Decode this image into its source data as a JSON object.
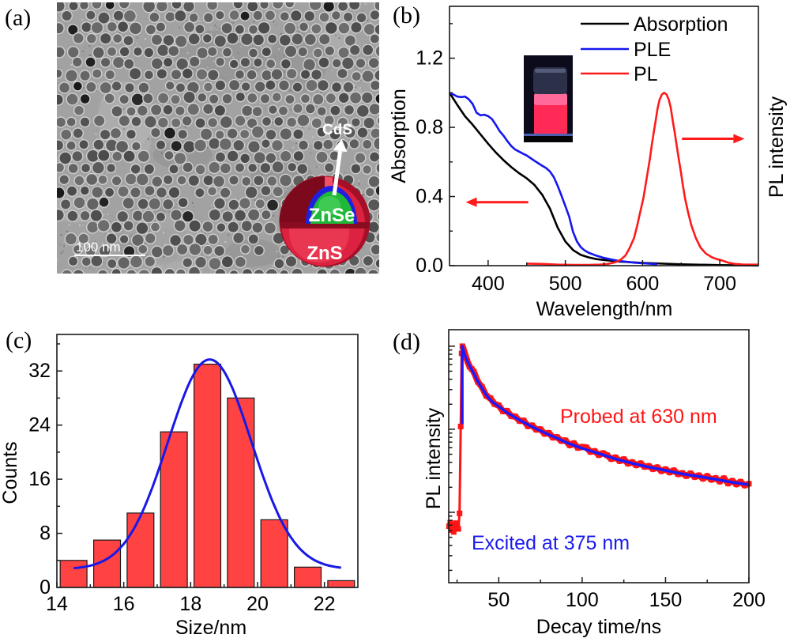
{
  "figure": {
    "panels": {
      "a": {
        "label": "(a)",
        "scale_bar_label": "100 nm",
        "shell_labels": {
          "cds": "CdS",
          "znse": "ZnSe",
          "zns": "ZnS"
        },
        "shell_colors": {
          "zns": "#dc2240",
          "cds": "#2020e0",
          "znse": "#20b838"
        }
      },
      "b": {
        "label": "(b)",
        "inset_image": "vial-photo"
      },
      "c": {
        "label": "(c)"
      },
      "d": {
        "label": "(d)"
      }
    }
  },
  "chart_data": [
    {
      "panel": "b",
      "type": "line",
      "title": "",
      "xlabel": "Wavelength/nm",
      "ylabel": "Absorption",
      "y2label": "PL intensity",
      "xlim": [
        350,
        750
      ],
      "ylim": [
        0,
        1.5
      ],
      "xticks": [
        400,
        500,
        600,
        700
      ],
      "xtick_labels": [
        "400",
        "500",
        "600",
        "700"
      ],
      "xticks_minor": [
        450,
        550,
        650
      ],
      "yticks": [
        0,
        0.4,
        0.8,
        1.2
      ],
      "ytick_labels": [
        "0.0",
        "0.4",
        "0.8",
        "1.2"
      ],
      "yticks_minor": [
        0.2,
        0.6,
        1.0,
        1.4
      ],
      "grid": false,
      "legend": "top-right",
      "series": [
        {
          "name": "Absorption",
          "color": "#000000",
          "axis": "left",
          "points": [
            [
              350,
              1.0
            ],
            [
              360,
              0.93
            ],
            [
              370,
              0.865
            ],
            [
              380,
              0.815
            ],
            [
              390,
              0.76
            ],
            [
              400,
              0.705
            ],
            [
              410,
              0.655
            ],
            [
              420,
              0.61
            ],
            [
              430,
              0.57
            ],
            [
              440,
              0.535
            ],
            [
              450,
              0.505
            ],
            [
              460,
              0.467
            ],
            [
              470,
              0.41
            ],
            [
              480,
              0.33
            ],
            [
              490,
              0.22
            ],
            [
              500,
              0.14
            ],
            [
              510,
              0.09
            ],
            [
              520,
              0.062
            ],
            [
              530,
              0.048
            ],
            [
              540,
              0.038
            ],
            [
              550,
              0.033
            ],
            [
              570,
              0.024
            ],
            [
              600,
              0.016
            ],
            [
              650,
              0.008
            ],
            [
              700,
              0.003
            ],
            [
              750,
              0.001
            ]
          ]
        },
        {
          "name": "PLE",
          "color": "#1616f0",
          "axis": "left",
          "points": [
            [
              350,
              1.0
            ],
            [
              355,
              0.99
            ],
            [
              360,
              0.978
            ],
            [
              365,
              0.975
            ],
            [
              370,
              0.978
            ],
            [
              375,
              0.962
            ],
            [
              380,
              0.935
            ],
            [
              385,
              0.885
            ],
            [
              390,
              0.87
            ],
            [
              395,
              0.873
            ],
            [
              400,
              0.865
            ],
            [
              405,
              0.848
            ],
            [
              410,
              0.815
            ],
            [
              415,
              0.778
            ],
            [
              420,
              0.752
            ],
            [
              425,
              0.72
            ],
            [
              430,
              0.692
            ],
            [
              435,
              0.672
            ],
            [
              440,
              0.66
            ],
            [
              445,
              0.648
            ],
            [
              450,
              0.637
            ],
            [
              455,
              0.622
            ],
            [
              460,
              0.607
            ],
            [
              465,
              0.592
            ],
            [
              470,
              0.578
            ],
            [
              475,
              0.565
            ],
            [
              480,
              0.545
            ],
            [
              485,
              0.512
            ],
            [
              490,
              0.462
            ],
            [
              495,
              0.405
            ],
            [
              500,
              0.345
            ],
            [
              505,
              0.283
            ],
            [
              510,
              0.195
            ],
            [
              515,
              0.14
            ],
            [
              520,
              0.107
            ],
            [
              525,
              0.088
            ],
            [
              530,
              0.075
            ],
            [
              540,
              0.058
            ],
            [
              550,
              0.045
            ],
            [
              560,
              0.035
            ],
            [
              570,
              0.027
            ],
            [
              580,
              0.022
            ],
            [
              590,
              0.017
            ],
            [
              600,
              0.014
            ],
            [
              610,
              0.011
            ],
            [
              619,
              0.008
            ]
          ]
        },
        {
          "name": "PL",
          "color": "#ff1a1a",
          "axis": "right",
          "points": [
            [
              450,
              0.012
            ],
            [
              470,
              0.01
            ],
            [
              490,
              0.006
            ],
            [
              510,
              0.004
            ],
            [
              530,
              0.004
            ],
            [
              545,
              0.006
            ],
            [
              555,
              0.01
            ],
            [
              565,
              0.02
            ],
            [
              572,
              0.035
            ],
            [
              578,
              0.06
            ],
            [
              583,
              0.1
            ],
            [
              589,
              0.16
            ],
            [
              593,
              0.23
            ],
            [
              597,
              0.31
            ],
            [
              601,
              0.39
            ],
            [
              604,
              0.47
            ],
            [
              607,
              0.55
            ],
            [
              609.5,
              0.62
            ],
            [
              612,
              0.7
            ],
            [
              614.5,
              0.77
            ],
            [
              617,
              0.84
            ],
            [
              619.5,
              0.91
            ],
            [
              622,
              0.96
            ],
            [
              625,
              0.99
            ],
            [
              628,
              1.0
            ],
            [
              631,
              0.99
            ],
            [
              634,
              0.96
            ],
            [
              636.6,
              0.91
            ],
            [
              639,
              0.84
            ],
            [
              641.7,
              0.77
            ],
            [
              644,
              0.7
            ],
            [
              646.8,
              0.62
            ],
            [
              649.5,
              0.545
            ],
            [
              652,
              0.47
            ],
            [
              655,
              0.39
            ],
            [
              658.8,
              0.31
            ],
            [
              663,
              0.235
            ],
            [
              669,
              0.16
            ],
            [
              675,
              0.105
            ],
            [
              682,
              0.07
            ],
            [
              690,
              0.048
            ],
            [
              696,
              0.038
            ],
            [
              701,
              0.033
            ],
            [
              706,
              0.025
            ],
            [
              712,
              0.016
            ],
            [
              720,
              0.01
            ],
            [
              730,
              0.007
            ],
            [
              750,
              0.006
            ]
          ]
        }
      ],
      "annotations": [
        {
          "type": "arrow",
          "direction": "left",
          "from": [
            452,
            0.367
          ],
          "to": [
            371,
            0.367
          ],
          "color": "#ff1a1a"
        },
        {
          "type": "arrow",
          "direction": "right",
          "from": [
            651,
            0.734
          ],
          "to": [
            732,
            0.734
          ],
          "color": "#ff1a1a"
        }
      ]
    },
    {
      "panel": "c",
      "type": "bar",
      "title": "",
      "xlabel": "Size/nm",
      "ylabel": "Counts",
      "xlim": [
        14,
        23
      ],
      "ylim": [
        0,
        37.4
      ],
      "xticks": [
        14,
        16,
        18,
        20,
        22
      ],
      "xtick_labels": [
        "14",
        "16",
        "18",
        "20",
        "22"
      ],
      "xticks_minor": [
        15,
        17,
        19,
        21
      ],
      "yticks": [
        0,
        8,
        16,
        24,
        32
      ],
      "ytick_labels": [
        "0",
        "8",
        "16",
        "24",
        "32"
      ],
      "yticks_minor": [
        4,
        12,
        20,
        28,
        36
      ],
      "grid": false,
      "categories": [
        14.5,
        15.5,
        16.5,
        17.5,
        18.5,
        19.5,
        20.5,
        21.5,
        22.5
      ],
      "values": [
        4,
        7,
        11,
        23,
        33,
        28,
        10,
        3,
        1
      ],
      "bar_width": 0.8,
      "bar_color": "#ff4242",
      "fit": {
        "type": "gaussian",
        "y0": 2.7,
        "A": 31,
        "xc": 18.57,
        "sigma": 1.25,
        "x_range": [
          14.5,
          22.5
        ],
        "color": "#1818e8"
      }
    },
    {
      "panel": "d",
      "type": "scatter",
      "title": "",
      "xlabel": "Decay time/ns",
      "ylabel": "PL intensity",
      "yscale": "log",
      "xlim": [
        20,
        200
      ],
      "ylim": [
        0.00142,
        1.58
      ],
      "xticks": [
        50,
        100,
        150,
        200
      ],
      "xtick_labels": [
        "50",
        "100",
        "150",
        "200"
      ],
      "xticks_minor": [
        25,
        75,
        125,
        175
      ],
      "ytick_labels": [],
      "grid": false,
      "data_points": {
        "color": "#ff1414",
        "marker": "square",
        "points": [
          [
            20.2,
            0.0068
          ],
          [
            20.9,
            0.0075
          ],
          [
            21.6,
            0.0061
          ],
          [
            22.3,
            0.0071
          ],
          [
            23.0,
            0.0058
          ],
          [
            23.7,
            0.0066
          ],
          [
            24.4,
            0.0074
          ],
          [
            25.1,
            0.0069
          ],
          [
            25.8,
            0.0063
          ],
          [
            26.5,
            0.0097
          ],
          [
            27.2,
            0.108
          ],
          [
            27.7,
            0.82
          ],
          [
            28.2,
            1.0
          ],
          [
            28.8,
            0.93
          ],
          [
            30,
            0.78
          ],
          [
            31.2,
            0.66
          ],
          [
            32.5,
            0.567
          ],
          [
            33.8,
            0.53
          ],
          [
            35,
            0.494
          ],
          [
            37.5,
            0.372
          ],
          [
            40,
            0.322
          ],
          [
            42.5,
            0.252
          ],
          [
            45,
            0.236
          ],
          [
            47.5,
            0.201
          ],
          [
            50,
            0.194
          ],
          [
            52.5,
            0.165
          ],
          [
            55,
            0.166
          ],
          [
            57.5,
            0.144
          ],
          [
            60,
            0.142
          ],
          [
            62.5,
            0.126
          ],
          [
            65,
            0.127
          ],
          [
            67.5,
            0.109
          ],
          [
            70,
            0.111
          ],
          [
            72.5,
            0.099
          ],
          [
            75,
            0.1
          ],
          [
            77.5,
            0.0883
          ],
          [
            80,
            0.0903
          ],
          [
            82.5,
            0.0795
          ],
          [
            85,
            0.0803
          ],
          [
            87.5,
            0.0725
          ],
          [
            90,
            0.0735
          ],
          [
            92.5,
            0.0643
          ],
          [
            95,
            0.0678
          ],
          [
            97.5,
            0.0597
          ],
          [
            100,
            0.0614
          ],
          [
            102.5,
            0.0604
          ],
          [
            105,
            0.0534
          ],
          [
            107.5,
            0.0546
          ],
          [
            110,
            0.049
          ],
          [
            112.5,
            0.0515
          ],
          [
            115,
            0.0485
          ],
          [
            117.5,
            0.0439
          ],
          [
            120,
            0.0458
          ],
          [
            122.5,
            0.0414
          ],
          [
            125,
            0.0436
          ],
          [
            127.5,
            0.0386
          ],
          [
            130,
            0.0402
          ],
          [
            132.5,
            0.0369
          ],
          [
            135,
            0.0389
          ],
          [
            137.5,
            0.0353
          ],
          [
            140,
            0.0361
          ],
          [
            142.5,
            0.0332
          ],
          [
            145,
            0.0348
          ],
          [
            147.5,
            0.0314
          ],
          [
            150,
            0.033
          ],
          [
            152.5,
            0.0303
          ],
          [
            155,
            0.032
          ],
          [
            157.5,
            0.0288
          ],
          [
            160,
            0.0296
          ],
          [
            162.5,
            0.0274
          ],
          [
            165,
            0.0294
          ],
          [
            167.5,
            0.0267
          ],
          [
            170,
            0.0278
          ],
          [
            172.5,
            0.0254
          ],
          [
            175,
            0.0273
          ],
          [
            177.5,
            0.0247
          ],
          [
            180,
            0.0258
          ],
          [
            182.5,
            0.0235
          ],
          [
            185,
            0.0257
          ],
          [
            187.5,
            0.0223
          ],
          [
            190,
            0.0239
          ],
          [
            192.5,
            0.0217
          ],
          [
            195,
            0.0233
          ],
          [
            197.5,
            0.0211
          ],
          [
            200,
            0.0221
          ]
        ]
      },
      "fit_line": {
        "color": "#1a1aff",
        "points": [
          [
            28.1,
            0.115
          ],
          [
            28.1,
            1.0
          ],
          [
            29,
            0.86
          ],
          [
            30,
            0.75
          ],
          [
            31,
            0.67
          ],
          [
            32,
            0.61
          ],
          [
            33,
            0.56
          ],
          [
            35,
            0.47
          ],
          [
            37,
            0.39
          ],
          [
            40,
            0.31
          ],
          [
            43,
            0.25
          ],
          [
            46,
            0.215
          ],
          [
            50,
            0.188
          ],
          [
            55,
            0.158
          ],
          [
            60,
            0.138
          ],
          [
            65,
            0.121
          ],
          [
            70,
            0.107
          ],
          [
            75,
            0.096
          ],
          [
            80,
            0.086
          ],
          [
            85,
            0.078
          ],
          [
            90,
            0.07
          ],
          [
            95,
            0.064
          ],
          [
            100,
            0.059
          ],
          [
            110,
            0.051
          ],
          [
            120,
            0.044
          ],
          [
            130,
            0.039
          ],
          [
            140,
            0.035
          ],
          [
            150,
            0.032
          ],
          [
            160,
            0.029
          ],
          [
            170,
            0.027
          ],
          [
            180,
            0.025
          ],
          [
            190,
            0.023
          ],
          [
            200,
            0.0215
          ]
        ]
      },
      "annotations": [
        {
          "text": "Probed at 630 nm",
          "color": "#ff1414"
        },
        {
          "text": "Excited at 375 nm",
          "color": "#1a1aee"
        }
      ]
    }
  ]
}
